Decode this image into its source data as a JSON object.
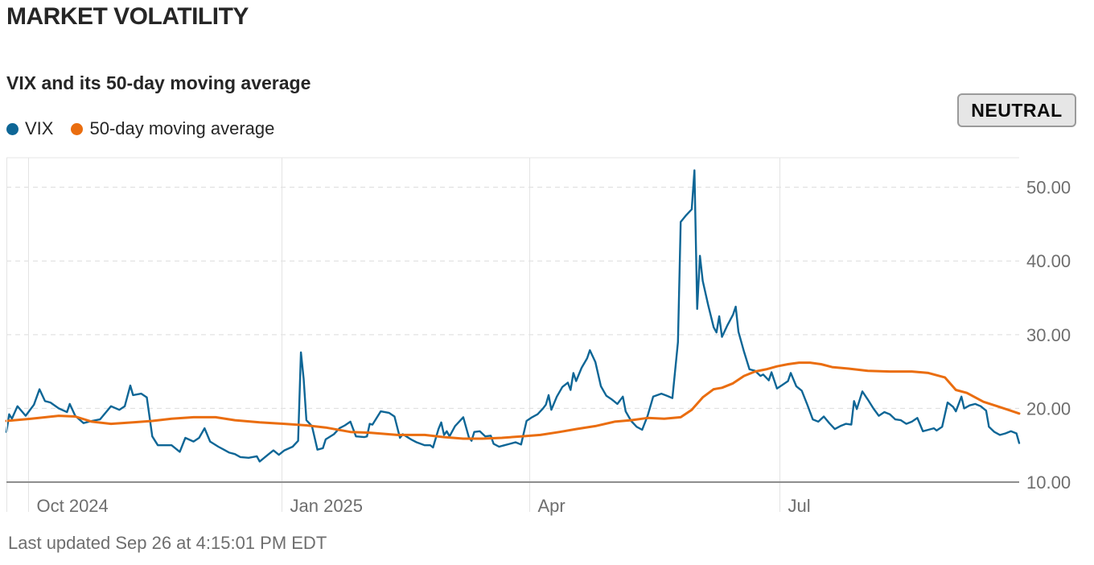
{
  "header": {
    "title": "MARKET VOLATILITY",
    "subtitle": "VIX and its 50-day moving average"
  },
  "legend": {
    "items": [
      {
        "label": "VIX",
        "color": "#0e6696"
      },
      {
        "label": "50-day moving average",
        "color": "#ea6d0f"
      }
    ]
  },
  "status": {
    "label": "NEUTRAL"
  },
  "footer": {
    "updated": "Last updated Sep 26 at 4:15:01 PM EDT"
  },
  "chart_data": {
    "type": "line",
    "title": "VIX and its 50-day moving average",
    "xlabel": "",
    "ylabel": "",
    "x_range": [
      "2024-09-23",
      "2025-09-26"
    ],
    "ylim": [
      10,
      54
    ],
    "y_ticks": [
      {
        "value": 10,
        "label": "10.00"
      },
      {
        "value": 20,
        "label": "20.00"
      },
      {
        "value": 30,
        "label": "30.00"
      },
      {
        "value": 40,
        "label": "40.00"
      },
      {
        "value": 50,
        "label": "50.00"
      }
    ],
    "x_ticks": [
      {
        "date": "2024-10-01",
        "label": "Oct 2024"
      },
      {
        "date": "2025-01-01",
        "label": "Jan 2025"
      },
      {
        "date": "2025-04-01",
        "label": "Apr"
      },
      {
        "date": "2025-07-01",
        "label": "Jul"
      }
    ],
    "series": [
      {
        "name": "VIX",
        "color": "#0e6696",
        "points": [
          [
            "2024-09-23",
            16.8
          ],
          [
            "2024-09-24",
            19.2
          ],
          [
            "2024-09-25",
            18.6
          ],
          [
            "2024-09-27",
            20.3
          ],
          [
            "2024-09-30",
            19.0
          ],
          [
            "2024-10-03",
            20.5
          ],
          [
            "2024-10-05",
            22.6
          ],
          [
            "2024-10-07",
            21.0
          ],
          [
            "2024-10-09",
            20.8
          ],
          [
            "2024-10-12",
            20.0
          ],
          [
            "2024-10-15",
            19.5
          ],
          [
            "2024-10-16",
            20.6
          ],
          [
            "2024-10-18",
            19.0
          ],
          [
            "2024-10-21",
            18.0
          ],
          [
            "2024-10-24",
            18.3
          ],
          [
            "2024-10-27",
            18.5
          ],
          [
            "2024-10-29",
            19.4
          ],
          [
            "2024-10-31",
            20.3
          ],
          [
            "2024-11-03",
            19.8
          ],
          [
            "2024-11-05",
            20.3
          ],
          [
            "2024-11-07",
            23.1
          ],
          [
            "2024-11-08",
            21.8
          ],
          [
            "2024-11-11",
            22.0
          ],
          [
            "2024-11-13",
            21.5
          ],
          [
            "2024-11-15",
            16.2
          ],
          [
            "2024-11-17",
            15.0
          ],
          [
            "2024-11-20",
            15.0
          ],
          [
            "2024-11-22",
            15.0
          ],
          [
            "2024-11-25",
            14.1
          ],
          [
            "2024-11-27",
            16.0
          ],
          [
            "2024-11-30",
            15.5
          ],
          [
            "2024-12-02",
            16.0
          ],
          [
            "2024-12-04",
            17.3
          ],
          [
            "2024-12-06",
            15.5
          ],
          [
            "2024-12-09",
            14.8
          ],
          [
            "2024-12-11",
            14.4
          ],
          [
            "2024-12-13",
            14.0
          ],
          [
            "2024-12-15",
            13.8
          ],
          [
            "2024-12-17",
            13.4
          ],
          [
            "2024-12-20",
            13.3
          ],
          [
            "2024-12-23",
            13.5
          ],
          [
            "2024-12-24",
            12.8
          ],
          [
            "2024-12-27",
            13.7
          ],
          [
            "2024-12-29",
            14.3
          ],
          [
            "2024-12-31",
            13.7
          ],
          [
            "2025-01-02",
            14.3
          ],
          [
            "2025-01-05",
            14.8
          ],
          [
            "2025-01-07",
            15.6
          ],
          [
            "2025-01-08",
            27.6
          ],
          [
            "2025-01-09",
            24.0
          ],
          [
            "2025-01-10",
            18.4
          ],
          [
            "2025-01-12",
            17.6
          ],
          [
            "2025-01-14",
            14.4
          ],
          [
            "2025-01-16",
            14.6
          ],
          [
            "2025-01-17",
            15.8
          ],
          [
            "2025-01-20",
            16.5
          ],
          [
            "2025-01-22",
            17.3
          ],
          [
            "2025-01-24",
            17.7
          ],
          [
            "2025-01-26",
            18.2
          ],
          [
            "2025-01-28",
            16.2
          ],
          [
            "2025-01-31",
            16.1
          ],
          [
            "2025-02-01",
            16.2
          ],
          [
            "2025-02-02",
            17.9
          ],
          [
            "2025-02-03",
            17.8
          ],
          [
            "2025-02-06",
            19.6
          ],
          [
            "2025-02-09",
            19.4
          ],
          [
            "2025-02-11",
            18.9
          ],
          [
            "2025-02-13",
            16.0
          ],
          [
            "2025-02-14",
            16.5
          ],
          [
            "2025-02-17",
            15.8
          ],
          [
            "2025-02-19",
            15.4
          ],
          [
            "2025-02-22",
            15.0
          ],
          [
            "2025-02-24",
            15.0
          ],
          [
            "2025-02-25",
            14.7
          ],
          [
            "2025-02-27",
            17.2
          ],
          [
            "2025-02-28",
            18.1
          ],
          [
            "2025-03-01",
            16.4
          ],
          [
            "2025-03-02",
            16.9
          ],
          [
            "2025-03-03",
            16.2
          ],
          [
            "2025-03-05",
            17.6
          ],
          [
            "2025-03-08",
            18.8
          ],
          [
            "2025-03-10",
            16.1
          ],
          [
            "2025-03-11",
            15.6
          ],
          [
            "2025-03-12",
            16.8
          ],
          [
            "2025-03-14",
            16.9
          ],
          [
            "2025-03-16",
            16.2
          ],
          [
            "2025-03-18",
            16.3
          ],
          [
            "2025-03-19",
            15.2
          ],
          [
            "2025-03-21",
            14.8
          ],
          [
            "2025-03-23",
            15.0
          ],
          [
            "2025-03-25",
            15.2
          ],
          [
            "2025-03-27",
            15.4
          ],
          [
            "2025-03-29",
            15.1
          ],
          [
            "2025-03-31",
            18.3
          ],
          [
            "2025-04-02",
            18.8
          ],
          [
            "2025-04-04",
            19.2
          ],
          [
            "2025-04-06",
            20.0
          ],
          [
            "2025-04-07",
            20.5
          ],
          [
            "2025-04-08",
            21.8
          ],
          [
            "2025-04-09",
            19.8
          ],
          [
            "2025-04-11",
            21.6
          ],
          [
            "2025-04-13",
            22.9
          ],
          [
            "2025-04-15",
            23.5
          ],
          [
            "2025-04-16",
            22.5
          ],
          [
            "2025-04-17",
            24.8
          ],
          [
            "2025-04-18",
            23.7
          ],
          [
            "2025-04-20",
            25.5
          ],
          [
            "2025-04-22",
            26.8
          ],
          [
            "2025-04-23",
            27.9
          ],
          [
            "2025-04-25",
            26.3
          ],
          [
            "2025-04-27",
            23.0
          ],
          [
            "2025-04-29",
            21.7
          ],
          [
            "2025-05-01",
            21.2
          ],
          [
            "2025-05-03",
            20.6
          ],
          [
            "2025-05-05",
            21.6
          ],
          [
            "2025-05-06",
            19.6
          ],
          [
            "2025-05-08",
            18.3
          ],
          [
            "2025-05-10",
            17.5
          ],
          [
            "2025-05-12",
            17.1
          ],
          [
            "2025-05-14",
            19.0
          ],
          [
            "2025-05-16",
            21.6
          ],
          [
            "2025-05-19",
            22.0
          ],
          [
            "2025-05-21",
            21.7
          ],
          [
            "2025-05-23",
            21.4
          ],
          [
            "2025-05-25",
            29.0
          ],
          [
            "2025-05-26",
            45.3
          ],
          [
            "2025-05-28",
            46.2
          ],
          [
            "2025-05-30",
            47.0
          ],
          [
            "2025-05-31",
            52.3
          ],
          [
            "2025-06-01",
            33.5
          ],
          [
            "2025-06-02",
            40.7
          ],
          [
            "2025-06-03",
            37.3
          ],
          [
            "2025-06-05",
            34.0
          ],
          [
            "2025-06-07",
            31.0
          ],
          [
            "2025-06-08",
            30.3
          ],
          [
            "2025-06-09",
            32.5
          ],
          [
            "2025-06-10",
            29.7
          ],
          [
            "2025-06-12",
            31.3
          ],
          [
            "2025-06-14",
            32.7
          ],
          [
            "2025-06-15",
            33.8
          ],
          [
            "2025-06-16",
            30.4
          ],
          [
            "2025-06-18",
            27.7
          ],
          [
            "2025-06-20",
            25.3
          ],
          [
            "2025-06-22",
            25.1
          ],
          [
            "2025-06-24",
            24.4
          ],
          [
            "2025-06-25",
            24.6
          ],
          [
            "2025-06-27",
            23.8
          ],
          [
            "2025-06-28",
            24.9
          ],
          [
            "2025-06-30",
            22.7
          ],
          [
            "2025-07-02",
            23.2
          ],
          [
            "2025-07-04",
            23.7
          ],
          [
            "2025-07-05",
            24.8
          ],
          [
            "2025-07-07",
            23.0
          ],
          [
            "2025-07-09",
            22.4
          ],
          [
            "2025-07-11",
            20.5
          ],
          [
            "2025-07-13",
            18.5
          ],
          [
            "2025-07-15",
            18.2
          ],
          [
            "2025-07-17",
            18.9
          ],
          [
            "2025-07-19",
            18.0
          ],
          [
            "2025-07-21",
            17.2
          ],
          [
            "2025-07-23",
            17.6
          ],
          [
            "2025-07-25",
            17.9
          ],
          [
            "2025-07-27",
            17.8
          ],
          [
            "2025-07-28",
            21.0
          ],
          [
            "2025-07-29",
            19.9
          ],
          [
            "2025-07-31",
            22.3
          ],
          [
            "2025-08-02",
            21.2
          ],
          [
            "2025-08-04",
            20.0
          ],
          [
            "2025-08-06",
            19.0
          ],
          [
            "2025-08-08",
            19.5
          ],
          [
            "2025-08-10",
            19.2
          ],
          [
            "2025-08-12",
            18.5
          ],
          [
            "2025-08-14",
            18.4
          ],
          [
            "2025-08-16",
            17.9
          ],
          [
            "2025-08-18",
            18.2
          ],
          [
            "2025-08-20",
            18.7
          ],
          [
            "2025-08-22",
            16.9
          ],
          [
            "2025-08-24",
            17.1
          ],
          [
            "2025-08-26",
            17.3
          ],
          [
            "2025-08-27",
            17.0
          ],
          [
            "2025-08-29",
            17.5
          ],
          [
            "2025-08-31",
            20.8
          ],
          [
            "2025-09-02",
            20.2
          ],
          [
            "2025-09-03",
            19.6
          ],
          [
            "2025-09-05",
            21.6
          ],
          [
            "2025-09-06",
            20.0
          ],
          [
            "2025-09-08",
            20.4
          ],
          [
            "2025-09-10",
            20.6
          ],
          [
            "2025-09-12",
            20.3
          ],
          [
            "2025-09-14",
            19.7
          ],
          [
            "2025-09-15",
            17.5
          ],
          [
            "2025-09-17",
            16.8
          ],
          [
            "2025-09-19",
            16.4
          ],
          [
            "2025-09-21",
            16.6
          ],
          [
            "2025-09-23",
            16.9
          ],
          [
            "2025-09-25",
            16.6
          ],
          [
            "2025-09-26",
            15.3
          ]
        ]
      },
      {
        "name": "50-day moving average",
        "color": "#ea6d0f",
        "points": [
          [
            "2024-09-23",
            18.3
          ],
          [
            "2024-10-02",
            18.6
          ],
          [
            "2024-10-12",
            19.0
          ],
          [
            "2024-10-18",
            18.9
          ],
          [
            "2024-10-24",
            18.2
          ],
          [
            "2024-10-31",
            17.9
          ],
          [
            "2024-11-08",
            18.1
          ],
          [
            "2024-11-15",
            18.3
          ],
          [
            "2024-11-22",
            18.6
          ],
          [
            "2024-11-30",
            18.8
          ],
          [
            "2024-12-08",
            18.8
          ],
          [
            "2024-12-15",
            18.4
          ],
          [
            "2024-12-24",
            18.1
          ],
          [
            "2025-01-02",
            17.9
          ],
          [
            "2025-01-10",
            17.7
          ],
          [
            "2025-01-17",
            17.4
          ],
          [
            "2025-01-26",
            16.8
          ],
          [
            "2025-02-02",
            16.7
          ],
          [
            "2025-02-12",
            16.4
          ],
          [
            "2025-02-22",
            16.4
          ],
          [
            "2025-03-01",
            16.1
          ],
          [
            "2025-03-08",
            15.9
          ],
          [
            "2025-03-15",
            15.9
          ],
          [
            "2025-03-22",
            16.0
          ],
          [
            "2025-03-29",
            16.2
          ],
          [
            "2025-04-05",
            16.4
          ],
          [
            "2025-04-12",
            16.8
          ],
          [
            "2025-04-18",
            17.2
          ],
          [
            "2025-04-25",
            17.6
          ],
          [
            "2025-05-02",
            18.2
          ],
          [
            "2025-05-08",
            18.4
          ],
          [
            "2025-05-14",
            18.7
          ],
          [
            "2025-05-20",
            18.6
          ],
          [
            "2025-05-26",
            18.8
          ],
          [
            "2025-05-30",
            19.8
          ],
          [
            "2025-06-03",
            21.5
          ],
          [
            "2025-06-07",
            22.6
          ],
          [
            "2025-06-10",
            22.8
          ],
          [
            "2025-06-14",
            23.4
          ],
          [
            "2025-06-18",
            24.4
          ],
          [
            "2025-06-22",
            25.0
          ],
          [
            "2025-06-26",
            25.3
          ],
          [
            "2025-06-30",
            25.7
          ],
          [
            "2025-07-04",
            26.0
          ],
          [
            "2025-07-08",
            26.2
          ],
          [
            "2025-07-12",
            26.2
          ],
          [
            "2025-07-16",
            26.0
          ],
          [
            "2025-07-20",
            25.6
          ],
          [
            "2025-07-26",
            25.4
          ],
          [
            "2025-08-02",
            25.1
          ],
          [
            "2025-08-10",
            25.0
          ],
          [
            "2025-08-18",
            25.0
          ],
          [
            "2025-08-24",
            24.8
          ],
          [
            "2025-08-30",
            24.2
          ],
          [
            "2025-09-03",
            22.5
          ],
          [
            "2025-09-07",
            22.1
          ],
          [
            "2025-09-13",
            20.9
          ],
          [
            "2025-09-18",
            20.3
          ],
          [
            "2025-09-22",
            19.8
          ],
          [
            "2025-09-26",
            19.3
          ]
        ]
      }
    ]
  }
}
